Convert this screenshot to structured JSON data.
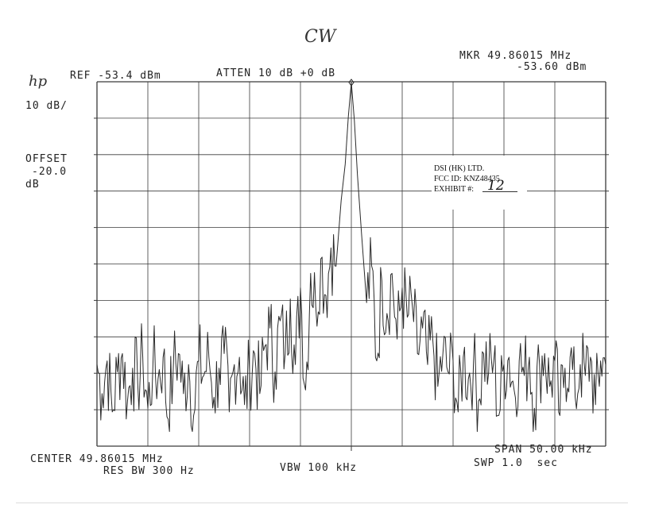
{
  "annotation": "CW",
  "instrument": {
    "logo": "hp",
    "ref_level": "REF -53.4 dBm",
    "atten": "ATTEN 10 dB +0 dB",
    "marker_freq": "MKR 49.86015 MHz",
    "marker_level": "-53.60 dBm",
    "scale": "10 dB/",
    "offset_label": "OFFSET",
    "offset_value": "-20.0",
    "offset_unit": "dB",
    "center": "CENTER 49.86015 MHz",
    "res_bw": "RES BW 300 Hz",
    "vbw": "VBW 100 kHz",
    "span": "SPAN 50.00 kHz",
    "sweep": "SWP 1.0  sec"
  },
  "stamp": {
    "line1": "DSI (HK) LTD.",
    "line2": "FCC ID:  KNZ48435",
    "line3": "EXHIBIT #:",
    "exhibit_number": "12"
  },
  "chart_data": {
    "type": "line",
    "title": "",
    "xlabel": "",
    "ylabel": "",
    "x_unit": "kHz offset from center",
    "y_unit": "dBm",
    "xlim": [
      -25,
      25
    ],
    "ylim": [
      -153.4,
      -53.4
    ],
    "grid": true,
    "grid_divisions": {
      "x": 10,
      "y": 10
    },
    "colors": {
      "trace": "#2a2a2a",
      "grid": "#3a3a3a"
    },
    "marker": {
      "x": 0,
      "y": -53.6
    },
    "series": [
      {
        "values": [
          [
            -25.0,
            -131
          ],
          [
            -24.5,
            -139
          ],
          [
            -24.0,
            -130
          ],
          [
            -23.5,
            -144
          ],
          [
            -23.0,
            -133
          ],
          [
            -22.5,
            -128
          ],
          [
            -22.0,
            -141
          ],
          [
            -21.5,
            -132
          ],
          [
            -21.0,
            -136
          ],
          [
            -20.5,
            -129
          ],
          [
            -20.0,
            -143
          ],
          [
            -19.5,
            -131
          ],
          [
            -19.0,
            -135
          ],
          [
            -18.5,
            -129
          ],
          [
            -18.0,
            -146
          ],
          [
            -17.5,
            -132
          ],
          [
            -17.0,
            -128
          ],
          [
            -16.5,
            -139
          ],
          [
            -16.0,
            -131
          ],
          [
            -15.5,
            -145
          ],
          [
            -15.0,
            -130
          ],
          [
            -14.5,
            -134
          ],
          [
            -14.0,
            -129
          ],
          [
            -13.5,
            -140
          ],
          [
            -13.0,
            -132
          ],
          [
            -12.5,
            -128
          ],
          [
            -12.0,
            -144
          ],
          [
            -11.5,
            -131
          ],
          [
            -11.0,
            -129
          ],
          [
            -10.5,
            -142
          ],
          [
            -10.0,
            -133
          ],
          [
            -9.5,
            -128
          ],
          [
            -9.0,
            -139
          ],
          [
            -8.5,
            -126
          ],
          [
            -8.0,
            -121
          ],
          [
            -7.5,
            -133
          ],
          [
            -7.0,
            -119
          ],
          [
            -6.5,
            -128
          ],
          [
            -6.0,
            -113
          ],
          [
            -5.5,
            -131
          ],
          [
            -5.0,
            -110
          ],
          [
            -4.5,
            -138
          ],
          [
            -4.0,
            -106
          ],
          [
            -3.5,
            -115
          ],
          [
            -3.0,
            -102
          ],
          [
            -2.5,
            -112
          ],
          [
            -2.0,
            -99
          ],
          [
            -1.5,
            -104
          ],
          [
            -1.0,
            -86
          ],
          [
            -0.6,
            -76
          ],
          [
            -0.3,
            -63
          ],
          [
            0.0,
            -53.6
          ],
          [
            0.3,
            -64
          ],
          [
            0.6,
            -79
          ],
          [
            1.0,
            -95
          ],
          [
            1.5,
            -114
          ],
          [
            2.0,
            -104
          ],
          [
            2.5,
            -130
          ],
          [
            3.0,
            -108
          ],
          [
            3.5,
            -117
          ],
          [
            4.0,
            -106
          ],
          [
            4.5,
            -124
          ],
          [
            5.0,
            -110
          ],
          [
            5.5,
            -118
          ],
          [
            6.0,
            -115
          ],
          [
            6.5,
            -128
          ],
          [
            7.0,
            -121
          ],
          [
            7.5,
            -131
          ],
          [
            8.0,
            -124
          ],
          [
            8.5,
            -137
          ],
          [
            9.0,
            -128
          ],
          [
            9.5,
            -133
          ],
          [
            10.0,
            -130
          ],
          [
            10.5,
            -144
          ],
          [
            11.0,
            -129
          ],
          [
            11.5,
            -135
          ],
          [
            12.0,
            -131
          ],
          [
            12.5,
            -141
          ],
          [
            13.0,
            -128
          ],
          [
            13.5,
            -133
          ],
          [
            14.0,
            -130
          ],
          [
            14.5,
            -145
          ],
          [
            15.0,
            -131
          ],
          [
            15.5,
            -129
          ],
          [
            16.0,
            -138
          ],
          [
            16.5,
            -130
          ],
          [
            17.0,
            -134
          ],
          [
            17.5,
            -129
          ],
          [
            18.0,
            -143
          ],
          [
            18.5,
            -131
          ],
          [
            19.0,
            -128
          ],
          [
            19.5,
            -137
          ],
          [
            20.0,
            -130
          ],
          [
            20.5,
            -145
          ],
          [
            21.0,
            -132
          ],
          [
            21.5,
            -129
          ],
          [
            22.0,
            -140
          ],
          [
            22.5,
            -131
          ],
          [
            23.0,
            -134
          ],
          [
            23.5,
            -129
          ],
          [
            24.0,
            -142
          ],
          [
            24.5,
            -130
          ],
          [
            25.0,
            -131
          ]
        ]
      }
    ]
  }
}
